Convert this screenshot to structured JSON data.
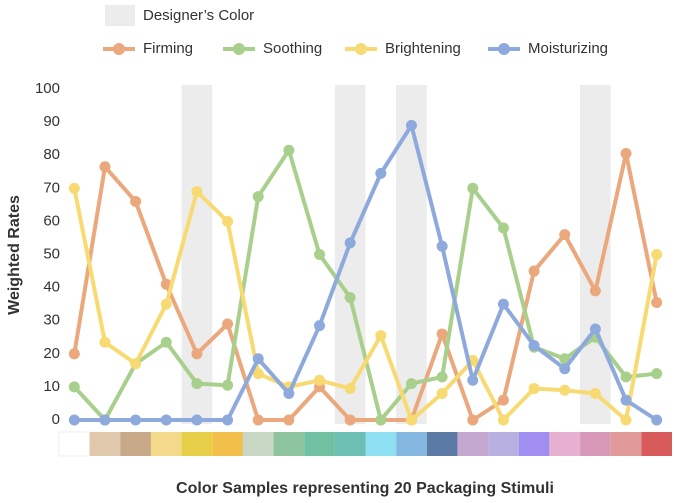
{
  "chart_data": {
    "type": "line",
    "xlabel": "Color Samples representing 20 Packaging Stimuli",
    "ylabel": "Weighted Rates",
    "highlight_label": "Designer’s Color",
    "highlight_color": "#ececec",
    "highlighted_categories": [
      4,
      9,
      11,
      17
    ],
    "categories": [
      null,
      null,
      null,
      null,
      null,
      null,
      null,
      null,
      null,
      null,
      null,
      null,
      null,
      null,
      null,
      null,
      null,
      null,
      null,
      null
    ],
    "swatch_colors": [
      "#ffffff",
      "#e0c8ad",
      "#c8a98a",
      "#f5d98a",
      "#e8cf4a",
      "#f2c04a",
      "#c9d8c4",
      "#8fc4a1",
      "#6fc1a2",
      "#6cbfb2",
      "#8fe0f2",
      "#84b8e0",
      "#5c7aa6",
      "#c4a8d0",
      "#b8b0e0",
      "#a08ef0",
      "#e8b0d0",
      "#d898b8",
      "#e09898",
      "#d85a5a"
    ],
    "series": [
      {
        "name": "Firming",
        "color": "#eaa87c",
        "values": [
          20,
          76.5,
          66,
          41,
          20,
          29,
          0,
          0,
          10,
          0,
          0,
          0,
          26,
          0,
          6,
          45,
          56,
          39,
          80.5,
          35.5
        ]
      },
      {
        "name": "Soothing",
        "color": "#a8d08c",
        "values": [
          10,
          0,
          17,
          23.5,
          11,
          10.5,
          67.5,
          81.5,
          50,
          37,
          0,
          11,
          13,
          70,
          58,
          22,
          18.5,
          25,
          13,
          14
        ]
      },
      {
        "name": "Brightening",
        "color": "#f8da72",
        "values": [
          70,
          23.5,
          17,
          35,
          69,
          60,
          14,
          10,
          12,
          9.5,
          25.5,
          0,
          8,
          18,
          0,
          9.5,
          9,
          8,
          0,
          50
        ]
      },
      {
        "name": "Moisturizing",
        "color": "#8eaadc",
        "values": [
          0,
          0,
          0,
          0,
          0,
          0,
          18.5,
          8,
          28.5,
          53.5,
          74.5,
          89,
          52.5,
          12,
          35,
          22.5,
          15.5,
          27.5,
          6,
          0
        ]
      }
    ],
    "ylim": [
      0,
      100
    ],
    "yticks": [
      0,
      10,
      20,
      30,
      40,
      50,
      60,
      70,
      80,
      90,
      100
    ],
    "grid": false
  }
}
